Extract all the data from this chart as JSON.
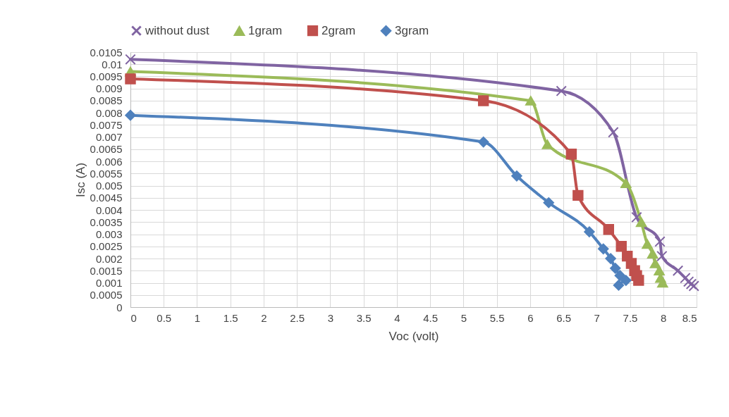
{
  "chart_data": {
    "type": "line",
    "xlabel": "Voc (volt)",
    "ylabel": "Isc (A)",
    "xlim": [
      0,
      8.5
    ],
    "xticks": [
      0,
      0.5,
      1,
      1.5,
      2,
      2.5,
      3,
      3.5,
      4,
      4.5,
      5,
      5.5,
      6,
      6.5,
      7,
      7.5,
      8,
      8.5
    ],
    "ylim": [
      0,
      0.0105
    ],
    "yticks": [
      0,
      0.0005,
      0.001,
      0.0015,
      0.002,
      0.0025,
      0.003,
      0.0035,
      0.004,
      0.0045,
      0.005,
      0.0055,
      0.006,
      0.0065,
      0.007,
      0.0075,
      0.008,
      0.0085,
      0.009,
      0.0095,
      0.01,
      0.0105
    ],
    "grid": true,
    "legend": "top",
    "line_style": "solid",
    "series": [
      {
        "name": "without dust",
        "color": "#8064a2",
        "marker": "cross",
        "x": [
          0,
          6.47,
          7.25,
          7.6,
          7.95,
          7.98,
          8.22,
          8.33,
          8.38,
          8.42,
          8.46
        ],
        "values": [
          0.0102,
          0.0089,
          0.0072,
          0.0037,
          0.0027,
          0.0021,
          0.0015,
          0.0012,
          0.00105,
          0.00095,
          0.00087
        ]
      },
      {
        "name": "1gram",
        "color": "#9bbb59",
        "marker": "triangle",
        "x": [
          0,
          6.01,
          6.26,
          7.44,
          7.67,
          7.76,
          7.84,
          7.88,
          7.94,
          7.96,
          7.99
        ],
        "values": [
          0.0097,
          0.0085,
          0.0067,
          0.0051,
          0.0035,
          0.0026,
          0.0022,
          0.0018,
          0.0015,
          0.0012,
          0.001
        ]
      },
      {
        "name": "2gram",
        "color": "#c0504d",
        "marker": "square",
        "x": [
          0,
          5.3,
          6.62,
          6.72,
          7.18,
          7.37,
          7.46,
          7.52,
          7.57,
          7.6,
          7.63
        ],
        "values": [
          0.0094,
          0.0085,
          0.0063,
          0.0046,
          0.0032,
          0.0025,
          0.0021,
          0.0018,
          0.0015,
          0.0013,
          0.0011
        ]
      },
      {
        "name": "3gram",
        "color": "#4f81bd",
        "marker": "diamond",
        "x": [
          0,
          5.3,
          5.8,
          6.28,
          6.89,
          7.1,
          7.21,
          7.28,
          7.35,
          7.44,
          7.33
        ],
        "values": [
          0.0079,
          0.0068,
          0.0054,
          0.0043,
          0.0031,
          0.0024,
          0.002,
          0.0016,
          0.0013,
          0.0011,
          0.0009
        ]
      }
    ]
  }
}
